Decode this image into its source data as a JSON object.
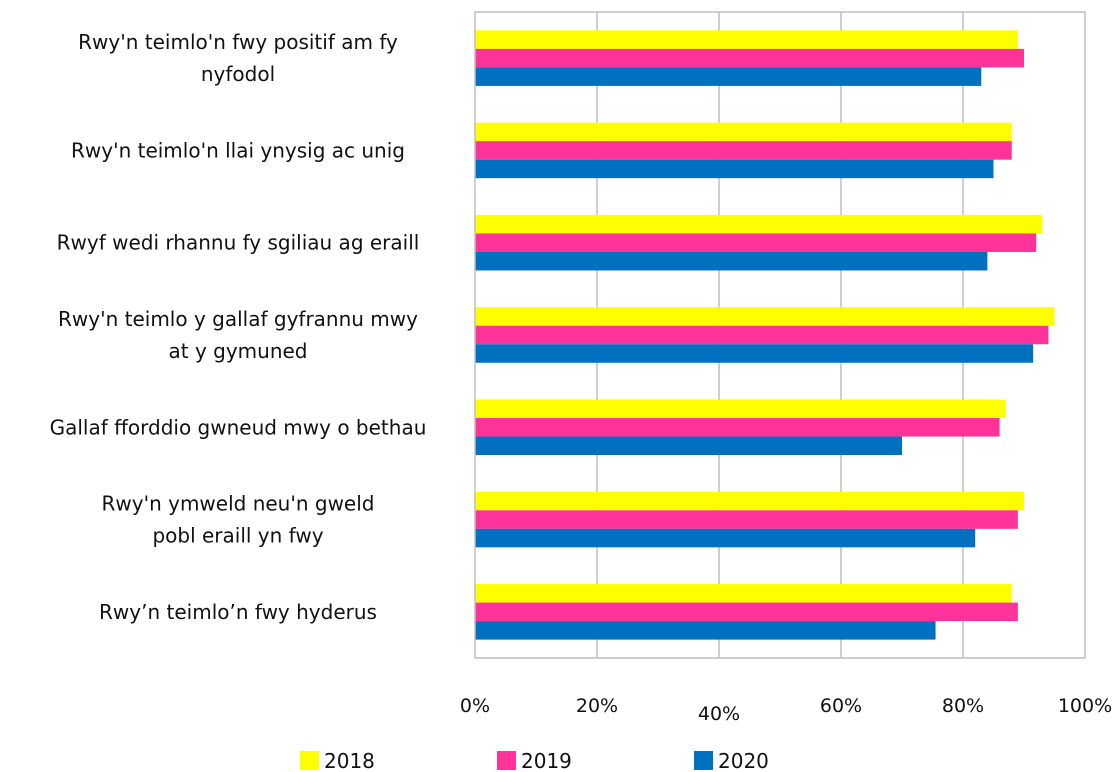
{
  "chart_data": {
    "type": "bar",
    "orientation": "horizontal",
    "categories": [
      [
        "Rwy'n teimlo'n fwy positif am fy",
        "nyfodol"
      ],
      [
        "Rwy'n teimlo'n llai ynysig ac unig"
      ],
      [
        "Rwyf wedi rhannu fy sgiliau ag eraill"
      ],
      [
        "Rwy'n teimlo y gallaf gyfrannu mwy",
        "at y gymuned"
      ],
      [
        "Gallaf fforddio gwneud mwy o bethau"
      ],
      [
        "Rwy'n ymweld neu'n gweld",
        "pobl eraill yn fwy"
      ],
      [
        "Rwy’n teimlo’n fwy hyderus"
      ]
    ],
    "series": [
      {
        "name": "2018",
        "color": "#FFFF00",
        "values": [
          89,
          88,
          93,
          95,
          87,
          90,
          88
        ]
      },
      {
        "name": "2019",
        "color": "#FF3399",
        "values": [
          90,
          88,
          92,
          94,
          86,
          89,
          89
        ]
      },
      {
        "name": "2020",
        "color": "#0070C0",
        "values": [
          83,
          85,
          84,
          91.5,
          70,
          82,
          75.5
        ]
      }
    ],
    "xlim": [
      0,
      100
    ],
    "xticks": [
      "0%",
      "20%",
      "40%",
      "60%",
      "80%",
      "100%"
    ],
    "grid": true,
    "legend_position": "bottom"
  }
}
